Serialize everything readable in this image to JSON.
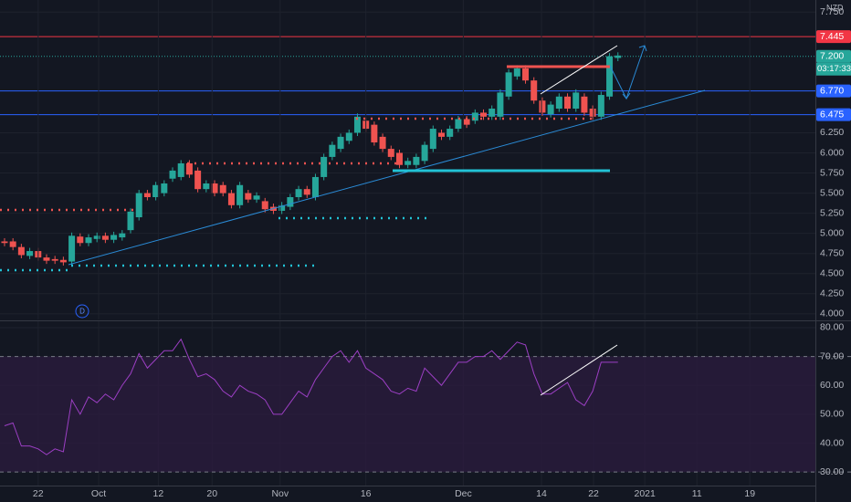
{
  "chart_data": [
    {
      "type": "candlestick",
      "currency": "NZD",
      "interval": "D",
      "countdown": "03:17:33",
      "up_color": "#26a69a",
      "down_color": "#ef5350",
      "grid": true,
      "xlim": [
        -0.54,
        96.5
      ],
      "ylim": [
        3.93,
        7.9
      ],
      "yticks": [
        {
          "value": 7.75,
          "label": "7.750"
        },
        {
          "value": 6.25,
          "label": "6.250"
        },
        {
          "value": 6.0,
          "label": "6.000"
        },
        {
          "value": 5.75,
          "label": "5.750"
        },
        {
          "value": 5.5,
          "label": "5.500"
        },
        {
          "value": 5.25,
          "label": "5.250"
        },
        {
          "value": 5.0,
          "label": "5.000"
        },
        {
          "value": 4.75,
          "label": "4.750"
        },
        {
          "value": 4.5,
          "label": "4.500"
        },
        {
          "value": 4.25,
          "label": "4.250"
        },
        {
          "value": 4.0,
          "label": "4.000"
        }
      ],
      "levels": [
        {
          "value": 7.445,
          "label": "7.445",
          "color": "#f23645",
          "style": "solid"
        },
        {
          "value": 7.2,
          "label": "7.200",
          "color": "#26a69a",
          "style": "dotted"
        },
        {
          "value": 6.77,
          "label": "6.770",
          "color": "#2962ff",
          "style": "solid"
        },
        {
          "value": 6.475,
          "label": "6.475",
          "color": "#2962ff",
          "style": "solid"
        }
      ],
      "open": [
        4.9,
        4.9,
        4.83,
        4.72,
        4.78,
        4.7,
        4.68,
        4.67,
        4.65,
        4.96,
        4.88,
        4.93,
        4.97,
        4.92,
        4.95,
        5.04,
        5.2,
        5.5,
        5.45,
        5.5,
        5.68,
        5.7,
        5.87,
        5.78,
        5.55,
        5.62,
        5.6,
        5.5,
        5.35,
        5.5,
        5.42,
        5.4,
        5.33,
        5.28,
        5.33,
        5.45,
        5.55,
        5.45,
        5.7,
        5.95,
        6.05,
        6.15,
        6.25,
        6.4,
        6.35,
        6.2,
        6.05,
        6.0,
        5.85,
        5.85,
        5.9,
        6.05,
        6.25,
        6.2,
        6.3,
        6.42,
        6.4,
        6.5,
        6.45,
        6.45,
        6.7,
        6.95,
        7.05,
        6.9,
        6.65,
        6.48,
        6.55,
        6.7,
        6.55,
        6.7,
        6.55,
        6.45,
        6.7,
        7.18
      ],
      "high": [
        4.94,
        4.94,
        4.87,
        4.82,
        4.82,
        4.74,
        4.72,
        4.71,
        5.01,
        5.0,
        4.99,
        5.01,
        5.01,
        5.02,
        5.04,
        5.31,
        5.54,
        5.54,
        5.64,
        5.66,
        5.82,
        5.91,
        5.91,
        5.82,
        5.66,
        5.66,
        5.64,
        5.54,
        5.64,
        5.54,
        5.51,
        5.44,
        5.37,
        5.39,
        5.49,
        5.59,
        5.59,
        5.74,
        5.99,
        6.14,
        6.24,
        6.29,
        6.49,
        6.44,
        6.39,
        6.24,
        6.09,
        6.04,
        5.94,
        5.99,
        6.14,
        6.34,
        6.29,
        6.34,
        6.46,
        6.46,
        6.54,
        6.54,
        6.59,
        6.79,
        7.04,
        7.09,
        7.09,
        6.94,
        6.69,
        6.64,
        6.74,
        6.74,
        6.79,
        6.74,
        6.59,
        6.76,
        7.24,
        7.25
      ],
      "low": [
        4.84,
        4.79,
        4.69,
        4.68,
        4.66,
        4.62,
        4.62,
        4.6,
        4.61,
        4.84,
        4.84,
        4.89,
        4.88,
        4.88,
        4.91,
        5.0,
        5.16,
        5.41,
        5.41,
        5.46,
        5.64,
        5.66,
        5.69,
        5.51,
        5.51,
        5.46,
        5.46,
        5.31,
        5.31,
        5.38,
        5.38,
        5.26,
        5.24,
        5.24,
        5.29,
        5.41,
        5.44,
        5.41,
        5.66,
        5.91,
        6.01,
        6.11,
        6.21,
        6.26,
        6.09,
        6.01,
        5.91,
        5.81,
        5.81,
        5.81,
        5.86,
        6.01,
        6.16,
        6.16,
        6.26,
        6.31,
        6.36,
        6.41,
        6.41,
        6.41,
        6.66,
        6.91,
        6.86,
        6.61,
        6.46,
        6.44,
        6.51,
        6.51,
        6.51,
        6.46,
        6.41,
        6.41,
        6.66,
        7.14
      ],
      "close": [
        4.88,
        4.83,
        4.73,
        4.78,
        4.7,
        4.66,
        4.66,
        4.64,
        4.97,
        4.88,
        4.95,
        4.97,
        4.92,
        4.98,
        5.0,
        5.27,
        5.5,
        5.45,
        5.6,
        5.62,
        5.78,
        5.87,
        5.73,
        5.55,
        5.62,
        5.5,
        5.5,
        5.35,
        5.6,
        5.42,
        5.47,
        5.3,
        5.28,
        5.35,
        5.45,
        5.55,
        5.48,
        5.7,
        5.95,
        6.1,
        6.2,
        6.25,
        6.45,
        6.3,
        6.13,
        6.05,
        5.95,
        5.85,
        5.9,
        5.95,
        6.1,
        6.3,
        6.2,
        6.3,
        6.42,
        6.35,
        6.5,
        6.45,
        6.55,
        6.75,
        7.0,
        7.05,
        6.9,
        6.65,
        6.5,
        6.6,
        6.7,
        6.55,
        6.75,
        6.5,
        6.45,
        6.72,
        7.2,
        7.21
      ]
    },
    {
      "type": "line",
      "color": "#9c3fc4",
      "band_color": "#2a1b3d",
      "grid": true,
      "xlim": [
        -0.54,
        96.5
      ],
      "ylim": [
        25.3,
        82.2
      ],
      "yticks": [
        {
          "value": 80,
          "label": "80.00"
        },
        {
          "value": 70,
          "label": "70.00"
        },
        {
          "value": 60,
          "label": "60.00"
        },
        {
          "value": 50,
          "label": "50.00"
        },
        {
          "value": 40,
          "label": "40.00"
        },
        {
          "value": 30,
          "label": "30.00"
        }
      ],
      "levels": [
        70,
        30
      ],
      "xticks": [
        {
          "value": 4.0,
          "label": "22"
        },
        {
          "value": 11.2,
          "label": "Oct"
        },
        {
          "value": 18.3,
          "label": "12"
        },
        {
          "value": 24.7,
          "label": "20"
        },
        {
          "value": 32.8,
          "label": "Nov"
        },
        {
          "value": 43.0,
          "label": "16"
        },
        {
          "value": 54.6,
          "label": "Dec"
        },
        {
          "value": 63.9,
          "label": "14"
        },
        {
          "value": 70.1,
          "label": "22"
        },
        {
          "value": 76.2,
          "label": "2021"
        },
        {
          "value": 82.4,
          "label": "11"
        },
        {
          "value": 88.7,
          "label": "19"
        }
      ],
      "values": [
        46,
        47,
        39,
        39,
        38,
        36,
        38,
        37,
        55,
        50,
        56,
        54,
        57,
        55,
        60,
        64,
        71,
        66,
        69,
        72,
        72,
        76,
        69,
        63,
        64,
        62,
        58,
        56,
        60,
        58,
        57,
        55,
        50,
        50,
        54,
        58,
        56,
        62,
        66,
        70,
        72,
        68,
        72,
        66,
        64,
        62,
        58,
        57,
        59,
        58,
        66,
        63,
        60,
        64,
        68,
        68,
        70,
        70,
        72,
        69,
        72,
        75,
        74,
        64,
        57,
        57,
        59,
        61,
        55,
        53,
        58,
        68,
        68,
        68
      ]
    }
  ]
}
